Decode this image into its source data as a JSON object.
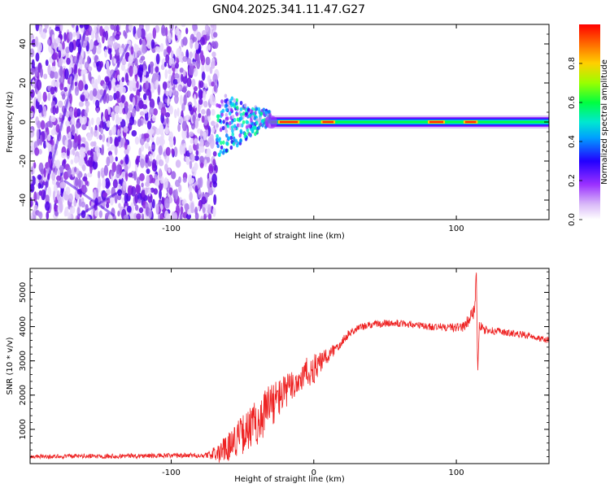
{
  "title": "GN04.2025.341.11.47.G27",
  "chart_data": [
    {
      "type": "heatmap",
      "name": "spectrogram",
      "xlabel": "Height of straight line (km)",
      "ylabel": "Frequency (Hz)",
      "xlim": [
        -199,
        165
      ],
      "ylim": [
        -50,
        50
      ],
      "xticks": [
        -100,
        0,
        100
      ],
      "xtick_labels": [
        "-100",
        "",
        "100"
      ],
      "yticks": [
        -40,
        -20,
        0,
        20,
        40
      ],
      "ytick_labels": [
        "-40",
        "-20",
        "0",
        "20",
        "40"
      ],
      "colorbar": {
        "label": "Normalized spectral amplitude",
        "range": [
          0,
          1
        ],
        "ticks": [
          0.0,
          0.2,
          0.4,
          0.6,
          0.8
        ],
        "tick_labels": [
          "0.0",
          "0.2",
          "0.4",
          "0.6",
          "0.8"
        ],
        "colormap": [
          "#ffffff",
          "#c9a6f5",
          "#8a2be2",
          "#0000ff",
          "#00c8ff",
          "#00ff66",
          "#b0ff00",
          "#ffd700",
          "#ff7a00",
          "#ff0000"
        ]
      },
      "features": {
        "noise_region_km": [
          -199,
          -68
        ],
        "transition_region_km": [
          -68,
          -30
        ],
        "tone_region_km": [
          -30,
          165
        ],
        "tone_frequency_hz": 0,
        "strong_tone_segments_km": [
          [
            -25,
            -10
          ],
          [
            5,
            15
          ],
          [
            80,
            92
          ],
          [
            105,
            115
          ]
        ]
      }
    },
    {
      "type": "line",
      "name": "snr",
      "xlabel": "Height of straight line (km)",
      "ylabel": "SNR (10 * v/v)",
      "xlim": [
        -199,
        165
      ],
      "ylim": [
        0,
        5700
      ],
      "xticks": [
        -100,
        0,
        100
      ],
      "xtick_labels": [
        "-100",
        "0",
        "100"
      ],
      "yticks": [
        1000,
        2000,
        3000,
        4000,
        5000
      ],
      "ytick_labels": [
        "1000",
        "2000",
        "3000",
        "4000",
        "5000"
      ],
      "color": "#ee2222",
      "series": [
        {
          "name": "SNR",
          "x": [
            -199,
            -150,
            -100,
            -75,
            -65,
            -55,
            -45,
            -38,
            -32,
            -28,
            -20,
            -10,
            -5,
            0,
            5,
            10,
            15,
            20,
            25,
            30,
            40,
            50,
            60,
            70,
            80,
            90,
            100,
            105,
            108,
            110,
            112,
            113,
            114,
            115,
            116,
            118,
            120,
            130,
            140,
            150,
            160,
            165
          ],
          "values": [
            200,
            220,
            230,
            240,
            350,
            700,
            1000,
            1300,
            1650,
            1800,
            2100,
            2450,
            2650,
            2750,
            2950,
            3150,
            3350,
            3600,
            3800,
            3950,
            4050,
            4100,
            4100,
            4050,
            4000,
            3980,
            3980,
            4000,
            4150,
            4300,
            4400,
            4600,
            5700,
            2600,
            4000,
            3950,
            3900,
            3850,
            3800,
            3750,
            3650,
            3600
          ],
          "noise_amplitude": [
            60,
            70,
            70,
            80,
            300,
            500,
            650,
            700,
            700,
            650,
            500,
            450,
            450,
            450,
            300,
            250,
            200,
            150,
            120,
            120,
            110,
            110,
            110,
            110,
            110,
            120,
            130,
            150,
            180,
            200,
            200,
            200,
            0,
            0,
            200,
            150,
            120,
            110,
            100,
            100,
            100,
            100
          ]
        }
      ]
    }
  ]
}
